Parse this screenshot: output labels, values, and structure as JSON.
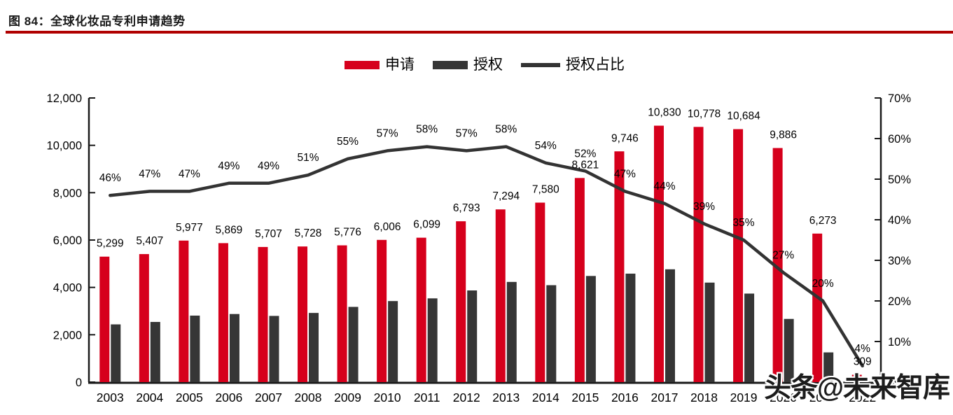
{
  "figure": {
    "title": "图 84：全球化妆品专利申请趋势"
  },
  "watermark": "头条@未来智库",
  "colors": {
    "application_red": "#d6001c",
    "grant_dark": "#363636",
    "line_dark": "#333333",
    "title_rule_red": "#b00000"
  },
  "legend": [
    {
      "label": "申请",
      "marker": "bar",
      "color": "#d6001c"
    },
    {
      "label": "授权",
      "marker": "bar",
      "color": "#363636"
    },
    {
      "label": "授权占比",
      "marker": "line",
      "color": "#333333"
    }
  ],
  "chart_data": {
    "type": "bar",
    "subtype": "grouped bars with secondary-axis line",
    "title": "图 84：全球化妆品专利申请趋势",
    "xlabel": "",
    "ylabel": "",
    "grid": false,
    "legend_position": "top-center",
    "categories": [
      "2003",
      "2004",
      "2005",
      "2006",
      "2007",
      "2008",
      "2009",
      "2010",
      "2011",
      "2012",
      "2013",
      "2014",
      "2015",
      "2016",
      "2017",
      "2018",
      "2019",
      "2020",
      "2021",
      "2022"
    ],
    "series": [
      {
        "name": "申请",
        "type": "bar",
        "axis": "left",
        "color": "#d6001c",
        "values": [
          5299,
          5407,
          5977,
          5869,
          5707,
          5728,
          5776,
          6006,
          6099,
          6793,
          7294,
          7580,
          8621,
          9746,
          10830,
          10778,
          10684,
          9886,
          6273,
          309
        ],
        "labels": [
          "5,299",
          "5,407",
          "5,977",
          "5,869",
          "5,707",
          "5,728",
          "5,776",
          "6,006",
          "6,099",
          "6,793",
          "7,294",
          "7,580",
          "8,621",
          "9,746",
          "10,830",
          "10,778",
          "10,684",
          "9,886",
          "6,273",
          "309"
        ]
      },
      {
        "name": "授权",
        "type": "bar",
        "axis": "left",
        "color": "#363636",
        "values": [
          2438,
          2541,
          2809,
          2876,
          2796,
          2921,
          3177,
          3423,
          3537,
          3872,
          4231,
          4093,
          4483,
          4581,
          4765,
          4203,
          3739,
          2669,
          1255,
          12
        ],
        "labels": []
      },
      {
        "name": "授权占比",
        "type": "line",
        "axis": "right",
        "color": "#333333",
        "values": [
          46,
          47,
          47,
          49,
          49,
          51,
          55,
          57,
          58,
          57,
          58,
          54,
          52,
          47,
          44,
          39,
          35,
          27,
          20,
          4
        ],
        "labels": [
          "46%",
          "47%",
          "47%",
          "49%",
          "49%",
          "51%",
          "55%",
          "57%",
          "58%",
          "57%",
          "58%",
          "54%",
          "52%",
          "47%",
          "44%",
          "39%",
          "35%",
          "27%",
          "20%",
          "4%"
        ]
      }
    ],
    "left_axis": {
      "min": 0,
      "max": 12000,
      "step": 2000,
      "tick_labels": [
        "0",
        "2,000",
        "4,000",
        "6,000",
        "8,000",
        "10,000",
        "12,000"
      ]
    },
    "right_axis": {
      "min": 0,
      "max": 70,
      "step": 10,
      "tick_labels": [
        "0%",
        "10%",
        "20%",
        "30%",
        "40%",
        "50%",
        "60%",
        "70%"
      ]
    }
  }
}
